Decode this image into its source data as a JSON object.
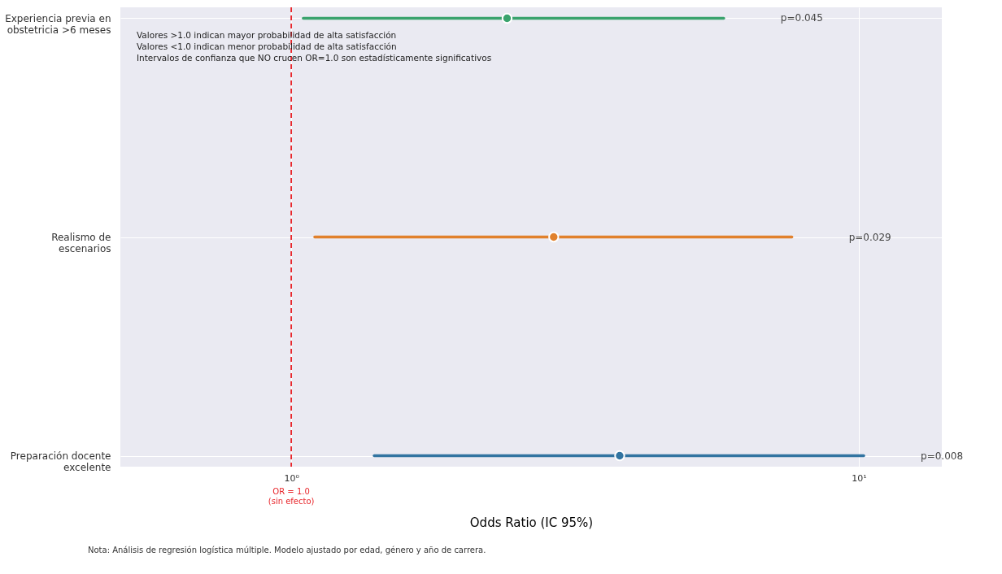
{
  "chart_data": {
    "type": "scatter",
    "orientation": "horizontal",
    "xlabel": "Odds Ratio (IC 95%)",
    "categories": [
      "Experiencia previa en\nobstetricia >6 meses",
      "Realismo de\nescenarios",
      "Preparación docente\nexcelente"
    ],
    "values": [
      2.4,
      2.9,
      3.79
    ],
    "errors": [
      [
        1.05,
        5.78
      ],
      [
        1.1,
        7.62
      ],
      [
        1.4,
        10.2
      ]
    ],
    "colors": [
      "#3aa36d",
      "#e1812c",
      "#3274a1"
    ],
    "log": "x",
    "xlim": [
      0.5,
      14
    ],
    "xticks": [
      {
        "value": 1,
        "label": "10⁰"
      },
      {
        "value": 10,
        "label": "10¹"
      }
    ],
    "ref_lines": [
      {
        "axis": "x",
        "value": 1,
        "label": "OR = 1.0\n(sin efecto)",
        "color": "#e8262b",
        "line_style": "dashed"
      }
    ],
    "annotations": [
      "p=0.045",
      "p=0.029",
      "p=0.008",
      "Valores >1.0 indican mayor probabilidad de alta satisfacción",
      "Valores <1.0 indican menor probabilidad de alta satisfacción",
      "Intervalos de confianza que NO crucen OR=1.0 son estadísticamente significativos",
      "Nota: Análisis de regresión logística múltiple. Modelo ajustado por edad, género y año de carrera."
    ],
    "marker": "circle",
    "grid": true
  }
}
